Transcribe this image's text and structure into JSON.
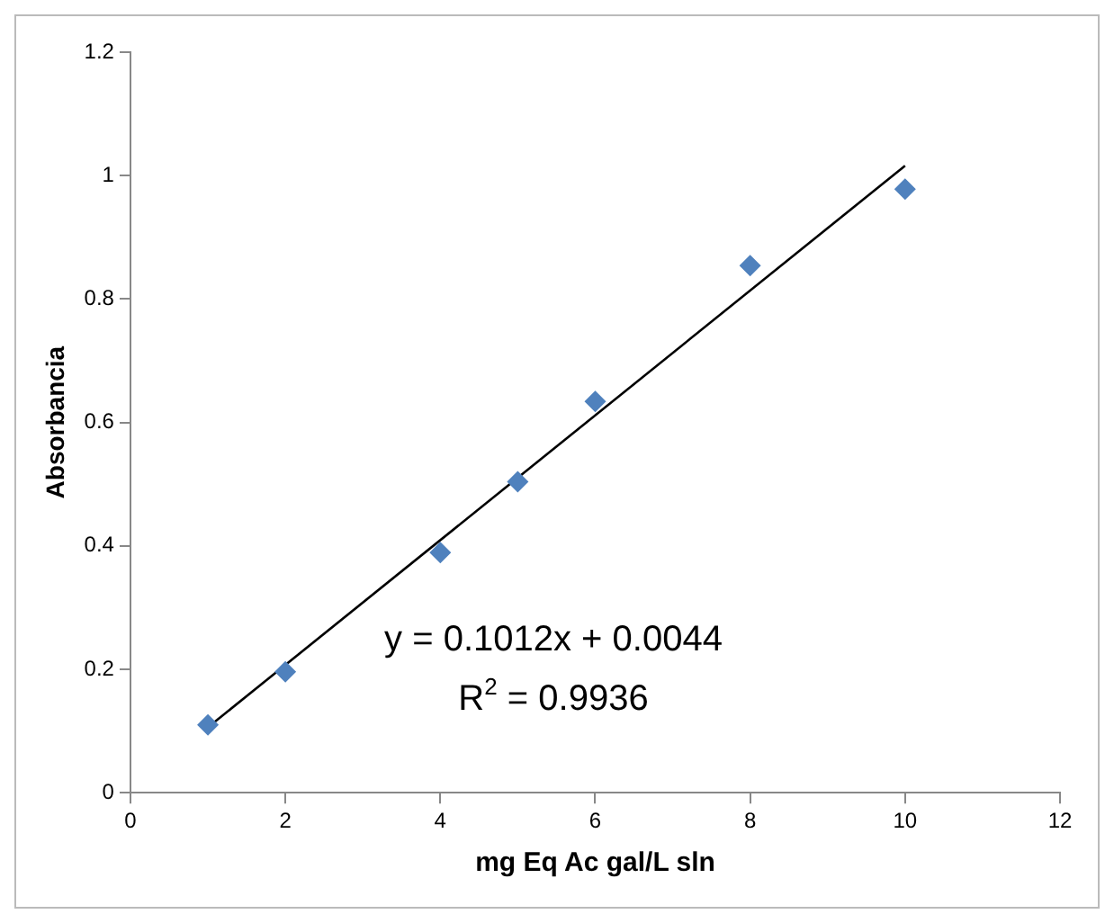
{
  "chart_data": {
    "type": "scatter",
    "xlabel": "mg Eq Ac gal/L sln",
    "ylabel": "Absorbancia",
    "xlim": [
      0,
      12
    ],
    "xticks": [
      0,
      2,
      4,
      6,
      8,
      10,
      12
    ],
    "ylim": [
      0,
      1.2
    ],
    "yticks": [
      0,
      0.2,
      0.4,
      0.6,
      0.8,
      1,
      1.2
    ],
    "grid": false,
    "legend": false,
    "marker": "diamond",
    "series": [
      {
        "color": "#4f81bd",
        "x": [
          1,
          2,
          4,
          5,
          6,
          8,
          10
        ],
        "values": [
          0.11,
          0.196,
          0.389,
          0.504,
          0.634,
          0.854,
          0.978
        ]
      },
      {
        "type": "line",
        "color": "#000000",
        "marker": "none",
        "x": [
          1,
          10
        ],
        "values": [
          0.106,
          1.016
        ]
      }
    ],
    "annotations": [
      "y = 0.1012x + 0.0044",
      "R$^{2}$ = 0.9936"
    ]
  }
}
